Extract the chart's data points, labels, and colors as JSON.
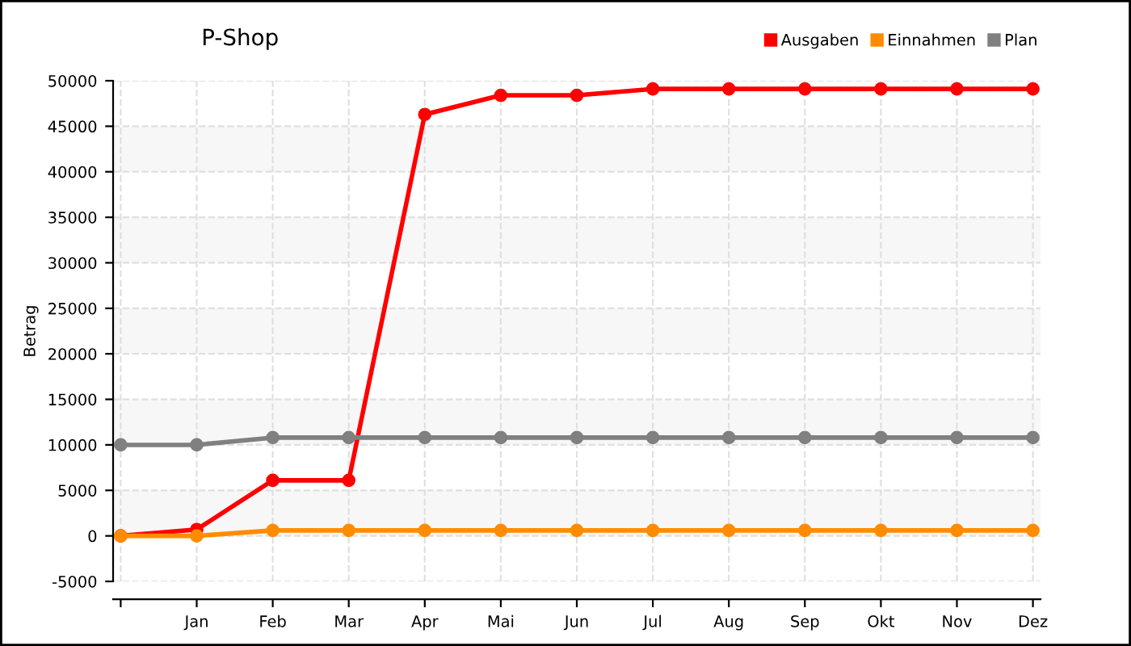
{
  "chart_data": {
    "type": "line",
    "title": "P-Shop",
    "ylabel": "Betrag",
    "categories": [
      null,
      "Jan",
      "Feb",
      "Mar",
      "Apr",
      "Mai",
      "Jun",
      "Jul",
      "Aug",
      "Sep",
      "Okt",
      "Nov",
      "Dez"
    ],
    "series": [
      {
        "name": "Ausgaben",
        "color": "#ff0000",
        "values": [
          0,
          700,
          6100,
          6100,
          46300,
          48400,
          48400,
          49100,
          49100,
          49100,
          49100,
          49100,
          49100
        ]
      },
      {
        "name": "Einnahmen",
        "color": "#ff8c00",
        "values": [
          0,
          0,
          600,
          600,
          600,
          600,
          600,
          600,
          600,
          600,
          600,
          600,
          600
        ]
      },
      {
        "name": "Plan",
        "color": "#808080",
        "values": [
          10000,
          10000,
          10800,
          10800,
          10800,
          10800,
          10800,
          10800,
          10800,
          10800,
          10800,
          10800,
          10800
        ]
      }
    ],
    "ylim": [
      -5000,
      50000
    ],
    "yticks": [
      -5000,
      0,
      5000,
      10000,
      15000,
      20000,
      25000,
      30000,
      35000,
      40000,
      45000,
      50000
    ],
    "bands": [
      {
        "axis": "y",
        "from": 0,
        "to": 5000,
        "color": "#f7f7f7"
      },
      {
        "axis": "y",
        "from": 10000,
        "to": 15000,
        "color": "#f7f7f7"
      },
      {
        "axis": "y",
        "from": 20000,
        "to": 25000,
        "color": "#f7f7f7"
      },
      {
        "axis": "y",
        "from": 30000,
        "to": 35000,
        "color": "#f7f7f7"
      },
      {
        "axis": "y",
        "from": 40000,
        "to": 45000,
        "color": "#f7f7f7"
      }
    ],
    "grid": true,
    "legend": "top right",
    "marker": "circle",
    "line_style": "solid"
  }
}
